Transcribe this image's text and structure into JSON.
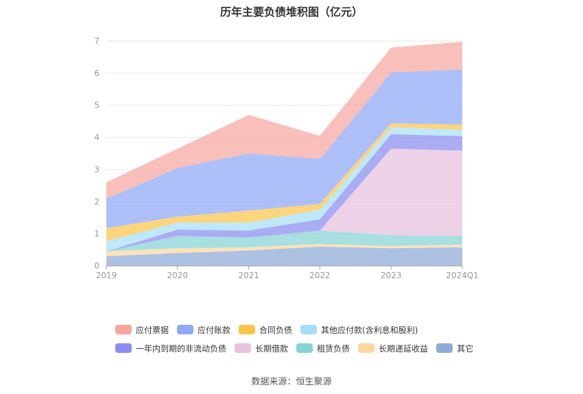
{
  "title": "历年主要负债堆积图（亿元）",
  "source": "数据来源：恒生聚源",
  "chart_data": {
    "type": "area",
    "stacked": true,
    "categories": [
      "2019",
      "2020",
      "2021",
      "2022",
      "2023",
      "2024Q1"
    ],
    "ylim": [
      0,
      7
    ],
    "yticks": [
      "0",
      "1",
      "2",
      "3",
      "4",
      "5",
      "6",
      "7"
    ],
    "grid": true,
    "legend_position": "bottom",
    "series": [
      {
        "name": "其它",
        "color": "#8eaad8",
        "values": [
          0.3,
          0.4,
          0.48,
          0.6,
          0.55,
          0.58
        ]
      },
      {
        "name": "长期递延收益",
        "color": "#fdd7a0",
        "values": [
          0.15,
          0.15,
          0.1,
          0.08,
          0.07,
          0.08
        ]
      },
      {
        "name": "租赁负债",
        "color": "#86d3d6",
        "values": [
          0.0,
          0.38,
          0.3,
          0.42,
          0.33,
          0.28
        ]
      },
      {
        "name": "长期借款",
        "color": "#e7c1df",
        "values": [
          0.0,
          0.0,
          0.0,
          0.0,
          2.7,
          2.65
        ]
      },
      {
        "name": "一年内到期的非流动负债",
        "color": "#8a8df0",
        "values": [
          0.0,
          0.2,
          0.22,
          0.35,
          0.45,
          0.45
        ]
      },
      {
        "name": "其他应付款(含利息和股利)",
        "color": "#a6dff5",
        "values": [
          0.32,
          0.22,
          0.25,
          0.3,
          0.22,
          0.2
        ]
      },
      {
        "name": "合同负债",
        "color": "#fbc54a",
        "values": [
          0.4,
          0.18,
          0.37,
          0.18,
          0.12,
          0.16
        ]
      },
      {
        "name": "应付账款",
        "color": "#8fa8f6",
        "values": [
          0.92,
          1.52,
          1.78,
          1.4,
          1.58,
          1.72
        ]
      },
      {
        "name": "应付票据",
        "color": "#f7a6a0",
        "values": [
          0.51,
          0.6,
          1.2,
          0.72,
          0.78,
          0.86
        ]
      }
    ]
  },
  "legend_rows": [
    [
      "应付票据",
      "应付账款",
      "合同负债",
      "其他应付款(含利息和股利)"
    ],
    [
      "一年内到期的非流动负债",
      "长期借款",
      "租赁负债",
      "长期递延收益",
      "其它"
    ]
  ]
}
